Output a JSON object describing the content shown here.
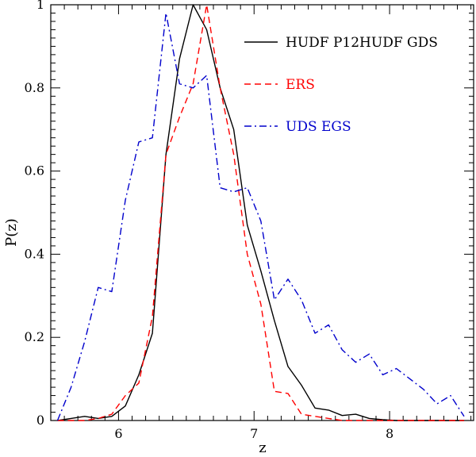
{
  "chart_data": {
    "type": "line",
    "xlabel": "z",
    "ylabel": "P(z)",
    "xlim": [
      5.5,
      8.62
    ],
    "ylim": [
      0,
      1.0
    ],
    "xticks": [
      6,
      7,
      8
    ],
    "yticks": [
      0,
      0.2,
      0.4,
      0.6,
      0.8,
      1
    ],
    "ytick_labels": [
      "0",
      "0.2",
      "0.4",
      "0.6",
      "0.8",
      "1"
    ],
    "grid": false,
    "legend_position": "top-right",
    "series": [
      {
        "name": "HUDF P12HUDF GDS",
        "color": "#000000",
        "style": "solid",
        "x": [
          5.55,
          5.65,
          5.75,
          5.85,
          5.95,
          6.05,
          6.15,
          6.25,
          6.35,
          6.45,
          6.55,
          6.65,
          6.75,
          6.85,
          6.95,
          7.05,
          7.15,
          7.25,
          7.35,
          7.45,
          7.55,
          7.65,
          7.75,
          7.85,
          7.95,
          8.05,
          8.15,
          8.25,
          8.35,
          8.45,
          8.55
        ],
        "y": [
          0.0,
          0.005,
          0.01,
          0.005,
          0.01,
          0.035,
          0.11,
          0.21,
          0.64,
          0.87,
          1.0,
          0.94,
          0.8,
          0.7,
          0.47,
          0.36,
          0.24,
          0.13,
          0.085,
          0.03,
          0.025,
          0.012,
          0.015,
          0.005,
          0.002,
          0.0,
          0.0,
          0.0,
          0.0,
          0.0,
          0.0
        ]
      },
      {
        "name": "ERS",
        "color": "#ff0000",
        "style": "dashed",
        "x": [
          5.55,
          5.65,
          5.75,
          5.85,
          5.95,
          6.05,
          6.15,
          6.25,
          6.35,
          6.45,
          6.55,
          6.65,
          6.75,
          6.85,
          6.95,
          7.05,
          7.15,
          7.25,
          7.35,
          7.45,
          7.55,
          7.65,
          7.75,
          7.85,
          7.95,
          8.05,
          8.15,
          8.25,
          8.35,
          8.45,
          8.55
        ],
        "y": [
          0.0,
          0.0,
          0.0,
          0.005,
          0.015,
          0.06,
          0.09,
          0.25,
          0.64,
          0.73,
          0.81,
          1.0,
          0.8,
          0.64,
          0.4,
          0.28,
          0.07,
          0.065,
          0.015,
          0.01,
          0.005,
          0.0,
          0.0,
          0.0,
          0.0,
          0.0,
          0.0,
          0.0,
          0.0,
          0.0,
          0.0
        ]
      },
      {
        "name": "UDS EGS",
        "color": "#0000cc",
        "style": "dashdot",
        "x": [
          5.55,
          5.65,
          5.75,
          5.85,
          5.95,
          6.05,
          6.15,
          6.25,
          6.35,
          6.45,
          6.55,
          6.65,
          6.75,
          6.85,
          6.95,
          7.05,
          7.15,
          7.25,
          7.35,
          7.45,
          7.55,
          7.65,
          7.75,
          7.85,
          7.95,
          8.05,
          8.15,
          8.25,
          8.35,
          8.45,
          8.55
        ],
        "y": [
          0.0,
          0.08,
          0.19,
          0.32,
          0.31,
          0.53,
          0.67,
          0.68,
          0.98,
          0.81,
          0.8,
          0.83,
          0.56,
          0.55,
          0.56,
          0.48,
          0.29,
          0.34,
          0.29,
          0.21,
          0.23,
          0.17,
          0.14,
          0.16,
          0.11,
          0.125,
          0.1,
          0.075,
          0.04,
          0.06,
          0.01
        ]
      }
    ]
  }
}
